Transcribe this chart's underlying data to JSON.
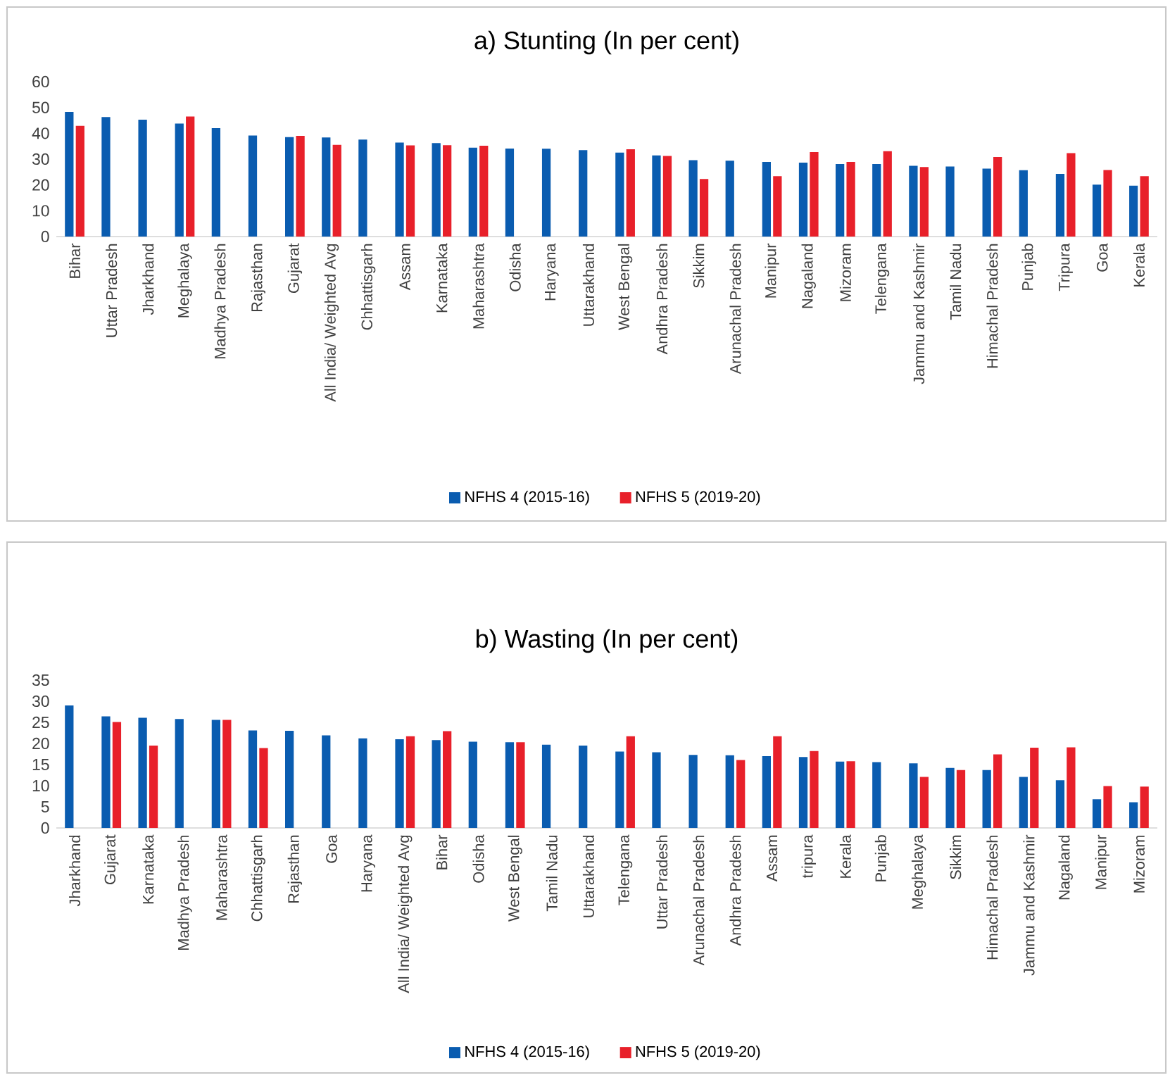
{
  "chart_data": [
    {
      "type": "bar",
      "title": "a) Stunting (In per cent)",
      "categories": [
        "Bihar",
        "Uttar Pradesh",
        "Jharkhand",
        "Meghalaya",
        "Madhya Pradesh",
        "Rajasthan",
        "Gujarat",
        "All India/ Weighted Avg",
        "Chhattisgarh",
        "Assam",
        "Karnataka",
        "Maharashtra",
        "Odisha",
        "Haryana",
        "Uttarakhand",
        "West Bengal",
        "Andhra Pradesh",
        "Sikkim",
        "Arunachal Pradesh",
        "Manipur",
        "Nagaland",
        "Mizoram",
        "Telengana",
        "Jammu and Kashmir",
        "Tamil Nadu",
        "Himachal Pradesh",
        "Punjab",
        "Tripura",
        "Goa",
        "Kerala"
      ],
      "series": [
        {
          "name": "NFHS 4 (2015-16)",
          "color": "#0a5cb0",
          "values": [
            48.3,
            46.3,
            45.3,
            43.8,
            42.0,
            39.1,
            38.5,
            38.4,
            37.6,
            36.4,
            36.2,
            34.4,
            34.1,
            34.0,
            33.5,
            32.5,
            31.4,
            29.6,
            29.4,
            28.9,
            28.6,
            28.1,
            28.1,
            27.4,
            27.1,
            26.3,
            25.7,
            24.3,
            20.1,
            19.7
          ]
        },
        {
          "name": "NFHS 5 (2019-20)",
          "color": "#e8202a",
          "values": [
            42.9,
            null,
            null,
            46.5,
            null,
            null,
            39.0,
            35.5,
            null,
            35.3,
            35.4,
            35.2,
            null,
            null,
            null,
            33.8,
            31.2,
            22.3,
            null,
            23.4,
            32.7,
            28.9,
            33.1,
            26.9,
            null,
            30.8,
            null,
            32.3,
            25.8,
            23.4
          ]
        }
      ],
      "ylim": [
        0,
        60
      ],
      "yticks": [
        0,
        10,
        20,
        30,
        40,
        50,
        60
      ],
      "grid": false,
      "legend": "bottom"
    },
    {
      "type": "bar",
      "title": "b) Wasting (In per cent)",
      "categories": [
        "Jharkhand",
        "Gujarat",
        "Karnataka",
        "Madhya Pradesh",
        "Maharashtra",
        "Chhattisgarh",
        "Rajasthan",
        "Goa",
        "Haryana",
        "All India/ Weighted Avg",
        "Bihar",
        "Odisha",
        "West Bengal",
        "Tamil Nadu",
        "Uttarakhand",
        "Telengana",
        "Uttar Pradesh",
        "Arunachal Pradesh",
        "Andhra Pradesh",
        "Assam",
        "tripura",
        "Kerala",
        "Punjab",
        "Meghalaya",
        "Sikkim",
        "Himachal Pradesh",
        "Jammu and Kashmir",
        "Nagaland",
        "Manipur",
        "Mizoram"
      ],
      "series": [
        {
          "name": "NFHS 4 (2015-16)",
          "color": "#0a5cb0",
          "values": [
            29.0,
            26.4,
            26.1,
            25.8,
            25.6,
            23.1,
            23.0,
            21.9,
            21.2,
            21.0,
            20.8,
            20.4,
            20.3,
            19.7,
            19.5,
            18.1,
            17.9,
            17.3,
            17.2,
            17.0,
            16.8,
            15.7,
            15.6,
            15.3,
            14.2,
            13.7,
            12.1,
            11.3,
            6.8,
            6.1
          ]
        },
        {
          "name": "NFHS 5 (2019-20)",
          "color": "#e8202a",
          "values": [
            null,
            25.1,
            19.5,
            null,
            25.6,
            18.9,
            null,
            null,
            null,
            21.7,
            22.9,
            null,
            20.3,
            null,
            null,
            21.7,
            null,
            null,
            16.1,
            21.7,
            18.2,
            15.8,
            null,
            12.1,
            13.7,
            17.4,
            19.0,
            19.1,
            9.9,
            9.8
          ]
        }
      ],
      "ylim": [
        0,
        35
      ],
      "yticks": [
        0,
        5,
        10,
        15,
        20,
        25,
        30,
        35
      ],
      "grid": false,
      "legend": "bottom"
    }
  ]
}
